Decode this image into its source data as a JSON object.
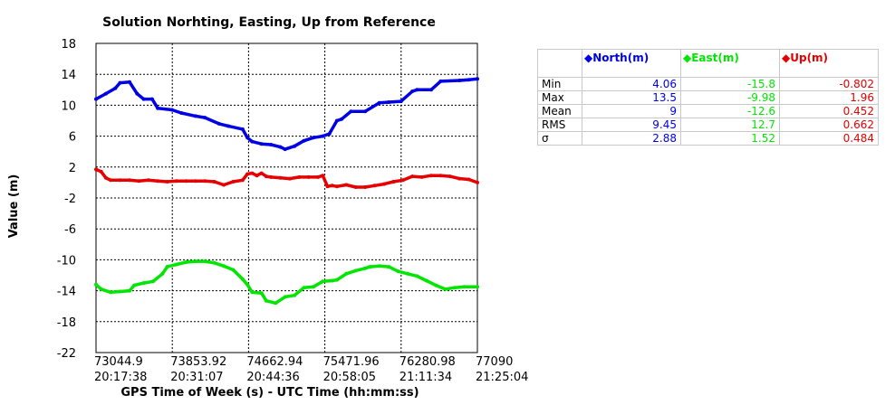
{
  "chart_data": {
    "type": "line",
    "title": "Solution Norhting, Easting, Up from Reference",
    "xlabel": "GPS Time of Week (s) - UTC Time (hh:mm:ss)",
    "ylabel": "Value (m)",
    "xlim": [
      73044.9,
      77090
    ],
    "ylim": [
      -22,
      18
    ],
    "y_ticks": [
      "18",
      "14",
      "10",
      "6",
      "2",
      "-2",
      "-6",
      "-10",
      "-14",
      "-18",
      "-22"
    ],
    "x_ticks": [
      {
        "tow": "73044.9",
        "utc": "20:17:38"
      },
      {
        "tow": "73853.92",
        "utc": "20:31:07"
      },
      {
        "tow": "74662.94",
        "utc": "20:44:36"
      },
      {
        "tow": "75471.96",
        "utc": "20:58:05"
      },
      {
        "tow": "76280.98",
        "utc": "21:11:34"
      },
      {
        "tow": "77090",
        "utc": "21:25:04"
      }
    ],
    "grid": true,
    "series": [
      {
        "name": "North(m)",
        "color": "#0000e6",
        "x": [
          73044.9,
          73150,
          73250,
          73300,
          73400,
          73480,
          73550,
          73640,
          73700,
          73850,
          73950,
          74100,
          74200,
          74350,
          74450,
          74600,
          74650,
          74700,
          74800,
          74900,
          75000,
          75050,
          75150,
          75250,
          75350,
          75450,
          75520,
          75600,
          75650,
          75750,
          75900,
          76050,
          76150,
          76280,
          76400,
          76450,
          76600,
          76700,
          76900,
          77000,
          77090
        ],
        "values": [
          10.8,
          11.5,
          12.2,
          12.9,
          13.0,
          11.5,
          10.8,
          10.8,
          9.6,
          9.4,
          9.0,
          8.6,
          8.4,
          7.6,
          7.3,
          6.9,
          5.8,
          5.3,
          5.0,
          4.9,
          4.6,
          4.3,
          4.7,
          5.4,
          5.8,
          6.0,
          6.3,
          8.0,
          8.2,
          9.2,
          9.2,
          10.3,
          10.4,
          10.5,
          11.8,
          12.0,
          12.0,
          13.1,
          13.2,
          13.3,
          13.4
        ]
      },
      {
        "name": "East(m)",
        "color": "#00e600",
        "x": [
          73044.9,
          73100,
          73200,
          73300,
          73400,
          73450,
          73550,
          73650,
          73750,
          73800,
          73900,
          74000,
          74100,
          74200,
          74300,
          74400,
          74500,
          74600,
          74650,
          74700,
          74800,
          74850,
          74950,
          75050,
          75150,
          75250,
          75350,
          75450,
          75550,
          75600,
          75700,
          75800,
          75900,
          75950,
          76050,
          76150,
          76250,
          76350,
          76450,
          76550,
          76650,
          76750,
          76850,
          76950,
          77090
        ],
        "values": [
          -13.2,
          -13.8,
          -14.2,
          -14.1,
          -14.0,
          -13.3,
          -13.0,
          -12.8,
          -11.8,
          -10.9,
          -10.6,
          -10.3,
          -10.2,
          -10.2,
          -10.4,
          -10.8,
          -11.3,
          -12.5,
          -13.2,
          -14.2,
          -14.3,
          -15.3,
          -15.6,
          -14.8,
          -14.6,
          -13.6,
          -13.5,
          -12.8,
          -12.7,
          -12.6,
          -11.8,
          -11.4,
          -11.1,
          -10.9,
          -10.8,
          -10.9,
          -11.5,
          -11.8,
          -12.1,
          -12.7,
          -13.3,
          -13.8,
          -13.6,
          -13.5,
          -13.5
        ]
      },
      {
        "name": "Up(m)",
        "color": "#e60000",
        "x": [
          73044.9,
          73100,
          73150,
          73200,
          73300,
          73400,
          73500,
          73600,
          73700,
          73800,
          73900,
          74000,
          74100,
          74200,
          74300,
          74400,
          74500,
          74600,
          74650,
          74700,
          74750,
          74800,
          74850,
          74900,
          75000,
          75100,
          75200,
          75300,
          75400,
          75450,
          75500,
          75550,
          75600,
          75700,
          75800,
          75900,
          76000,
          76100,
          76200,
          76300,
          76400,
          76500,
          76600,
          76700,
          76800,
          76900,
          77000,
          77090
        ],
        "values": [
          1.7,
          1.4,
          0.6,
          0.3,
          0.3,
          0.3,
          0.2,
          0.3,
          0.2,
          0.1,
          0.2,
          0.2,
          0.2,
          0.2,
          0.1,
          -0.3,
          0.1,
          0.3,
          1.1,
          1.2,
          0.9,
          1.2,
          0.8,
          0.7,
          0.6,
          0.5,
          0.7,
          0.7,
          0.7,
          0.9,
          -0.5,
          -0.4,
          -0.5,
          -0.3,
          -0.6,
          -0.6,
          -0.4,
          -0.2,
          0.1,
          0.3,
          0.8,
          0.7,
          0.9,
          0.9,
          0.8,
          0.5,
          0.4,
          0.0
        ]
      }
    ]
  },
  "stats_table": {
    "headers": [
      "North(m)",
      "East(m)",
      "Up(m)"
    ],
    "header_colors": [
      "#0000e6",
      "#00e600",
      "#e60000"
    ],
    "rows": [
      {
        "label": "Min",
        "values": [
          "4.06",
          "-15.8",
          "-0.802"
        ]
      },
      {
        "label": "Max",
        "values": [
          "13.5",
          "-9.98",
          "1.96"
        ]
      },
      {
        "label": "Mean",
        "values": [
          "9",
          "-12.6",
          "0.452"
        ]
      },
      {
        "label": "RMS",
        "values": [
          "9.45",
          "12.7",
          "0.662"
        ]
      },
      {
        "label": "σ",
        "values": [
          "2.88",
          "1.52",
          "0.484"
        ]
      }
    ]
  }
}
